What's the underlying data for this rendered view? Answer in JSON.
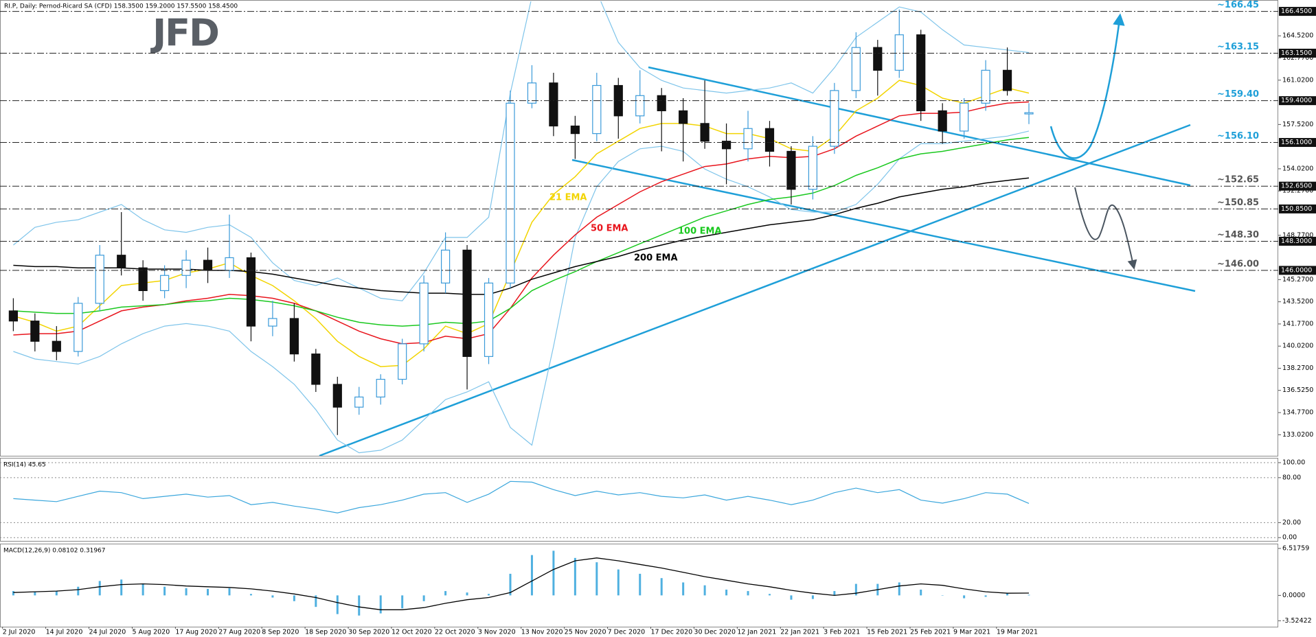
{
  "header": "RI.P, Daily:  Pernod-Ricard SA (CFD)  158.3500 159.2000 157.5500 158.4500",
  "logo": "JFD",
  "chart_data": [
    {
      "type": "candlestick",
      "categories": [
        "2 Jul 2020",
        null,
        "14 Jul 2020",
        null,
        "24 Jul 2020",
        null,
        "5 Aug 2020",
        null,
        "17 Aug 2020",
        null,
        "27 Aug 2020",
        null,
        "8 Sep 2020",
        null,
        "18 Sep 2020",
        null,
        "30 Sep 2020",
        null,
        "12 Oct 2020",
        null,
        "22 Oct 2020",
        null,
        "3 Nov 2020",
        null,
        "13 Nov 2020",
        null,
        "25 Nov 2020",
        null,
        "7 Dec 2020",
        null,
        "17 Dec 2020",
        null,
        "30 Dec 2020",
        null,
        "12 Jan 2021",
        null,
        "22 Jan 2021",
        null,
        "3 Feb 2021",
        null,
        "15 Feb 2021",
        null,
        "25 Feb 2021",
        null,
        "9 Mar 2021",
        null,
        "19 Mar 2021",
        null
      ],
      "ohlc": [
        [
          142.8,
          143.8,
          141.2,
          142.0
        ],
        [
          142.0,
          142.6,
          139.6,
          140.4
        ],
        [
          140.4,
          141.6,
          138.9,
          139.6
        ],
        [
          139.6,
          143.9,
          139.2,
          143.4
        ],
        [
          143.4,
          148.0,
          142.8,
          147.2
        ],
        [
          147.2,
          150.6,
          145.6,
          146.2
        ],
        [
          146.2,
          146.8,
          143.6,
          144.4
        ],
        [
          144.4,
          146.4,
          143.8,
          145.6
        ],
        [
          145.6,
          147.6,
          144.6,
          146.8
        ],
        [
          146.8,
          147.8,
          145.0,
          146.0
        ],
        [
          146.0,
          150.4,
          145.4,
          147.0
        ],
        [
          147.0,
          147.4,
          140.4,
          141.6
        ],
        [
          141.6,
          143.6,
          140.8,
          142.2
        ],
        [
          142.2,
          143.4,
          138.8,
          139.4
        ],
        [
          139.4,
          139.8,
          136.4,
          137.0
        ],
        [
          137.0,
          137.6,
          133.0,
          135.2
        ],
        [
          135.2,
          136.8,
          134.6,
          136.0
        ],
        [
          136.0,
          137.8,
          135.4,
          137.4
        ],
        [
          137.4,
          140.6,
          137.0,
          140.2
        ],
        [
          140.2,
          145.6,
          139.6,
          145.0
        ],
        [
          145.0,
          149.0,
          144.2,
          147.6
        ],
        [
          147.6,
          148.0,
          136.6,
          139.2
        ],
        [
          139.2,
          145.4,
          138.6,
          145.0
        ],
        [
          145.0,
          160.2,
          144.6,
          159.2
        ],
        [
          159.2,
          162.2,
          158.8,
          160.8
        ],
        [
          160.8,
          161.6,
          156.6,
          157.4
        ],
        [
          157.4,
          158.2,
          154.8,
          156.8
        ],
        [
          156.8,
          161.6,
          156.2,
          160.6
        ],
        [
          160.6,
          161.2,
          156.4,
          158.2
        ],
        [
          158.2,
          161.8,
          157.6,
          159.8
        ],
        [
          159.8,
          160.4,
          155.4,
          158.6
        ],
        [
          158.6,
          159.6,
          154.6,
          157.6
        ],
        [
          157.6,
          161.0,
          155.6,
          156.2
        ],
        [
          156.2,
          157.6,
          152.8,
          155.6
        ],
        [
          155.6,
          158.6,
          154.6,
          157.2
        ],
        [
          157.2,
          157.8,
          154.2,
          155.4
        ],
        [
          155.4,
          155.8,
          151.2,
          152.4
        ],
        [
          152.4,
          156.6,
          151.6,
          155.8
        ],
        [
          155.8,
          160.8,
          155.2,
          160.2
        ],
        [
          160.2,
          164.8,
          159.6,
          163.6
        ],
        [
          163.6,
          164.2,
          159.8,
          161.8
        ],
        [
          161.8,
          166.6,
          161.2,
          164.6
        ],
        [
          164.6,
          165.0,
          157.8,
          158.6
        ],
        [
          158.6,
          159.2,
          156.0,
          157.0
        ],
        [
          157.0,
          159.6,
          156.4,
          159.2
        ],
        [
          159.2,
          162.6,
          158.6,
          161.8
        ],
        [
          161.8,
          163.6,
          159.8,
          160.2
        ],
        [
          158.35,
          159.2,
          157.55,
          158.45
        ]
      ],
      "candle_colors": {
        "up": "#ffffff",
        "up_edge": "#3a9ad9",
        "down": "#111111",
        "down_edge": "#111111"
      },
      "series": [
        {
          "name": "21 EMA",
          "color": "#f2d400",
          "values": [
            142.4,
            141.9,
            141.2,
            141.6,
            143.2,
            144.8,
            145.0,
            145.2,
            145.8,
            146.1,
            146.6,
            145.6,
            144.8,
            143.6,
            142.2,
            140.4,
            139.2,
            138.4,
            138.5,
            139.8,
            141.6,
            141.0,
            141.8,
            145.8,
            149.8,
            152.0,
            153.4,
            155.2,
            156.2,
            157.2,
            157.6,
            157.6,
            157.4,
            156.8,
            156.8,
            156.4,
            155.6,
            155.4,
            156.6,
            158.6,
            159.6,
            161.0,
            160.6,
            159.6,
            159.2,
            159.8,
            160.4,
            160.0
          ]
        },
        {
          "name": "50 EMA",
          "color": "#e8141c",
          "values": [
            140.9,
            141.0,
            141.0,
            141.2,
            142.0,
            142.8,
            143.1,
            143.3,
            143.6,
            143.8,
            144.1,
            144.0,
            143.8,
            143.4,
            142.8,
            142.0,
            141.2,
            140.6,
            140.2,
            140.3,
            140.8,
            140.6,
            141.0,
            143.0,
            145.4,
            147.2,
            148.8,
            150.2,
            151.2,
            152.2,
            153.0,
            153.6,
            154.2,
            154.4,
            154.8,
            155.0,
            154.9,
            155.0,
            155.6,
            156.6,
            157.4,
            158.2,
            158.4,
            158.4,
            158.5,
            158.9,
            159.2,
            159.3
          ]
        },
        {
          "name": "100 EMA",
          "color": "#19c81e",
          "values": [
            142.8,
            142.7,
            142.6,
            142.6,
            142.8,
            143.1,
            143.2,
            143.3,
            143.5,
            143.6,
            143.8,
            143.7,
            143.5,
            143.2,
            142.8,
            142.3,
            141.9,
            141.7,
            141.6,
            141.7,
            141.9,
            141.8,
            142.0,
            143.0,
            144.4,
            145.2,
            145.9,
            146.7,
            147.4,
            148.1,
            148.8,
            149.5,
            150.2,
            150.7,
            151.2,
            151.6,
            151.8,
            152.1,
            152.7,
            153.5,
            154.1,
            154.8,
            155.2,
            155.4,
            155.7,
            156.0,
            156.3,
            156.5
          ]
        },
        {
          "name": "200 EMA",
          "color": "#000000",
          "values": [
            146.4,
            146.3,
            146.3,
            146.2,
            146.2,
            146.2,
            146.1,
            146.1,
            146.1,
            146.0,
            146.0,
            145.9,
            145.7,
            145.4,
            145.1,
            144.8,
            144.6,
            144.4,
            144.3,
            144.2,
            144.2,
            144.1,
            144.1,
            144.6,
            145.3,
            145.8,
            146.3,
            146.7,
            147.1,
            147.6,
            148.0,
            148.4,
            148.7,
            149.0,
            149.3,
            149.6,
            149.8,
            150.0,
            150.4,
            150.9,
            151.3,
            151.8,
            152.1,
            152.4,
            152.6,
            152.9,
            153.1,
            153.3
          ]
        }
      ],
      "bands": [
        {
          "color": "#7ec4ea",
          "values": [
            148.0,
            149.4,
            149.8,
            150.0,
            150.6,
            151.2,
            150.0,
            149.2,
            149.0,
            149.4,
            149.6,
            148.6,
            146.6,
            145.2,
            144.8,
            145.4,
            144.6,
            143.8,
            143.6,
            145.8,
            148.6,
            148.6,
            150.2,
            160.0,
            167.6,
            168.6,
            168.8,
            168.0,
            164.0,
            162.0,
            161.0,
            160.4,
            160.2,
            160.0,
            160.2,
            160.4,
            160.8,
            160.0,
            162.0,
            164.4,
            165.6,
            166.8,
            166.4,
            165.0,
            163.8,
            163.6,
            163.4,
            163.2
          ]
        },
        {
          "color": "#7ec4ea",
          "values": [
            139.6,
            139.0,
            138.8,
            138.6,
            139.2,
            140.2,
            141.0,
            141.6,
            141.8,
            141.6,
            141.2,
            139.6,
            138.4,
            137.0,
            135.0,
            132.6,
            131.6,
            131.8,
            132.6,
            134.2,
            135.8,
            136.4,
            137.2,
            133.6,
            132.2,
            140.0,
            148.6,
            152.6,
            154.6,
            155.6,
            155.8,
            155.4,
            154.0,
            153.2,
            152.6,
            151.8,
            150.8,
            150.6,
            150.6,
            151.2,
            152.8,
            154.8,
            156.0,
            156.0,
            156.2,
            156.4,
            156.6,
            157.0
          ]
        }
      ],
      "levels": [
        {
          "value": 166.45,
          "label": "166.4500",
          "note": "~166.45",
          "color": "#1e9fd8"
        },
        {
          "value": 163.15,
          "label": "163.1500",
          "note": "~163.15",
          "color": "#1e9fd8"
        },
        {
          "value": 159.4,
          "label": "159.4000",
          "note": "~159.40",
          "color": "#1e9fd8"
        },
        {
          "value": 156.1,
          "label": "156.1000",
          "note": "~156.10",
          "color": "#1e9fd8"
        },
        {
          "value": 152.65,
          "label": "152.6500",
          "note": "~152.65",
          "color": "#555555"
        },
        {
          "value": 150.85,
          "label": "150.8500",
          "note": "~150.85",
          "color": "#555555"
        },
        {
          "value": 148.3,
          "label": "148.3000",
          "note": "~148.30",
          "color": "#555555"
        },
        {
          "value": 146.0,
          "label": "146.0000",
          "note": "~146.00",
          "color": "#555555"
        }
      ],
      "ylim": [
        131.36,
        167.24
      ],
      "yticks": [
        {
          "value": 164.52,
          "label": "164.5200"
        },
        {
          "value": 162.77,
          "label": "162.7700"
        },
        {
          "value": 161.02,
          "label": "161.0200"
        },
        {
          "value": 157.52,
          "label": "157.5200"
        },
        {
          "value": 154.02,
          "label": "154.0200"
        },
        {
          "value": 152.27,
          "label": "152.2700"
        },
        {
          "value": 148.77,
          "label": "148.7700"
        },
        {
          "value": 145.27,
          "label": "145.2700"
        },
        {
          "value": 143.52,
          "label": "143.5200"
        },
        {
          "value": 141.77,
          "label": "141.7700"
        },
        {
          "value": 140.02,
          "label": "140.0200"
        },
        {
          "value": 138.27,
          "label": "138.2700"
        },
        {
          "value": 136.525,
          "label": "136.5250"
        },
        {
          "value": 134.77,
          "label": "134.7700"
        },
        {
          "value": 133.02,
          "label": "133.0200"
        }
      ]
    },
    {
      "type": "line",
      "title": "RSI(14) 45.65",
      "color": "#3aa6dc",
      "values": [
        52,
        50,
        48,
        55,
        62,
        60,
        52,
        55,
        58,
        54,
        56,
        44,
        47,
        42,
        38,
        33,
        40,
        44,
        50,
        58,
        60,
        47,
        58,
        75,
        74,
        64,
        56,
        62,
        57,
        60,
        55,
        53,
        57,
        50,
        55,
        50,
        44,
        50,
        60,
        66,
        60,
        64,
        50,
        46,
        52,
        60,
        58,
        45.65
      ],
      "ylim": [
        -4.4,
        105.5
      ],
      "yticks": [
        {
          "value": 100,
          "label": "100.00"
        },
        {
          "value": 80,
          "label": "80.00"
        },
        {
          "value": 20,
          "label": "20.00"
        },
        {
          "value": 0,
          "label": "0.00"
        }
      ],
      "grid": true
    },
    {
      "type": "macd",
      "title": "MACD(12,26,9) 0.08102 0.31967",
      "color": "#4fb0e0",
      "signal_color": "#000000",
      "values": [
        0.6,
        0.5,
        0.6,
        1.2,
        2.0,
        2.2,
        1.6,
        1.2,
        1.0,
        0.9,
        1.0,
        0.2,
        -0.3,
        -0.8,
        -1.6,
        -2.6,
        -2.8,
        -2.5,
        -1.8,
        -0.8,
        0.6,
        0.4,
        0.2,
        3.0,
        5.6,
        6.2,
        5.2,
        4.6,
        3.6,
        3.0,
        2.4,
        1.8,
        1.4,
        0.8,
        0.6,
        0.2,
        -0.6,
        -0.5,
        0.6,
        1.6,
        1.6,
        1.8,
        0.8,
        0.0,
        -0.4,
        -0.2,
        0.3,
        0.08102
      ],
      "signal": [
        0.4,
        0.5,
        0.6,
        0.8,
        1.2,
        1.5,
        1.6,
        1.5,
        1.3,
        1.2,
        1.1,
        0.9,
        0.6,
        0.2,
        -0.3,
        -1.0,
        -1.6,
        -2.0,
        -2.0,
        -1.7,
        -1.1,
        -0.6,
        -0.3,
        0.4,
        2.0,
        3.6,
        4.8,
        5.2,
        4.8,
        4.3,
        3.8,
        3.2,
        2.6,
        2.1,
        1.6,
        1.2,
        0.7,
        0.3,
        0.0,
        0.3,
        0.8,
        1.3,
        1.6,
        1.4,
        0.9,
        0.5,
        0.3,
        0.31967
      ],
      "ylim": [
        -4.35,
        7.09
      ],
      "yticks": [
        6.51759,
        {
          "value": 0,
          "label": "0.0000"
        },
        -3.52422
      ],
      "grid": false
    }
  ]
}
